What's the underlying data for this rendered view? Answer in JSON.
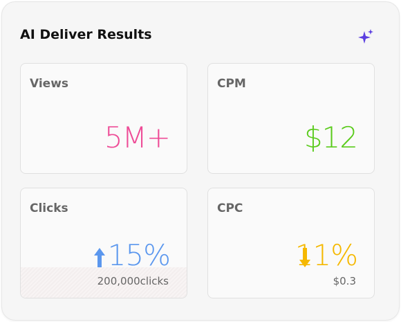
{
  "header": {
    "title": "AI Deliver Results"
  },
  "cards": [
    {
      "label": "Views",
      "value": "5M+"
    },
    {
      "label": "CPM",
      "value": "$12"
    },
    {
      "label": "Clicks",
      "value": "15%",
      "sub": "200,000clicks"
    },
    {
      "label": "CPC",
      "value": "11%",
      "sub": "$0.3"
    }
  ]
}
